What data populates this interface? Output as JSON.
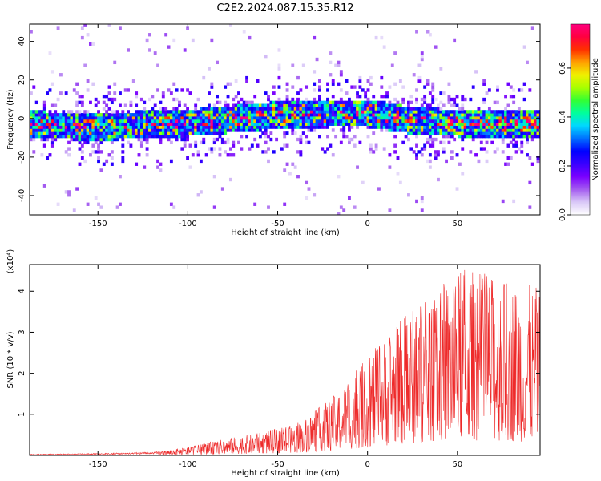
{
  "title": "C2E2.2024.087.15.35.R12",
  "colorbar": {
    "label": "Normalized spectral amplitude",
    "range": [
      0.0,
      0.78
    ],
    "ticks": [
      "0.0",
      "0.2",
      "0.4",
      "0.6"
    ],
    "colors": [
      "#ffffff",
      "#d9c8f7",
      "#a45cf0",
      "#7a00ff",
      "#3a00ff",
      "#0000ff",
      "#0070ff",
      "#00d8ff",
      "#00ff9c",
      "#33ff33",
      "#a8ff00",
      "#f0f000",
      "#ffa000",
      "#ff3000",
      "#ff0040",
      "#ff0080"
    ]
  },
  "chart_data": [
    {
      "type": "heatmap",
      "xlabel": "Height of straight line (km)",
      "ylabel": "Frequency (Hz)",
      "xlim": [
        -188,
        96
      ],
      "ylim": [
        -50,
        49
      ],
      "xticks": [
        "-150",
        "-100",
        "-50",
        "0",
        "50"
      ],
      "yticks": [
        "-40",
        "-20",
        "0",
        "20",
        "40"
      ],
      "band_center": [
        {
          "x": -188,
          "y": -4
        },
        {
          "x": -150,
          "y": -5
        },
        {
          "x": -100,
          "y": -3
        },
        {
          "x": -50,
          "y": 1
        },
        {
          "x": -20,
          "y": 2
        },
        {
          "x": 0,
          "y": 2
        },
        {
          "x": 25,
          "y": -2
        },
        {
          "x": 50,
          "y": -3
        },
        {
          "x": 96,
          "y": -4
        }
      ],
      "band_halfwidth_hz": 7,
      "peak_amplitude": 0.75
    },
    {
      "type": "line",
      "xlabel": "Height of straight line (km)",
      "ylabel": "SNR (10 * v/v)",
      "y_multiplier": "(x10⁴)",
      "xlim": [
        -188,
        96
      ],
      "ylim": [
        0,
        4.65
      ],
      "xticks": [
        "-150",
        "-100",
        "-50",
        "0",
        "50"
      ],
      "yticks": [
        "1",
        "2",
        "3",
        "4"
      ],
      "color": "#ee2a2a",
      "envelope": [
        {
          "x": -188,
          "y": 0.03
        },
        {
          "x": -150,
          "y": 0.05
        },
        {
          "x": -120,
          "y": 0.08
        },
        {
          "x": -100,
          "y": 0.2
        },
        {
          "x": -80,
          "y": 0.4
        },
        {
          "x": -60,
          "y": 0.55
        },
        {
          "x": -40,
          "y": 0.75
        },
        {
          "x": -20,
          "y": 1.4
        },
        {
          "x": 0,
          "y": 2.4
        },
        {
          "x": 20,
          "y": 3.4
        },
        {
          "x": 40,
          "y": 4.2
        },
        {
          "x": 55,
          "y": 4.6
        },
        {
          "x": 75,
          "y": 4.3
        },
        {
          "x": 96,
          "y": 4.1
        }
      ]
    }
  ]
}
